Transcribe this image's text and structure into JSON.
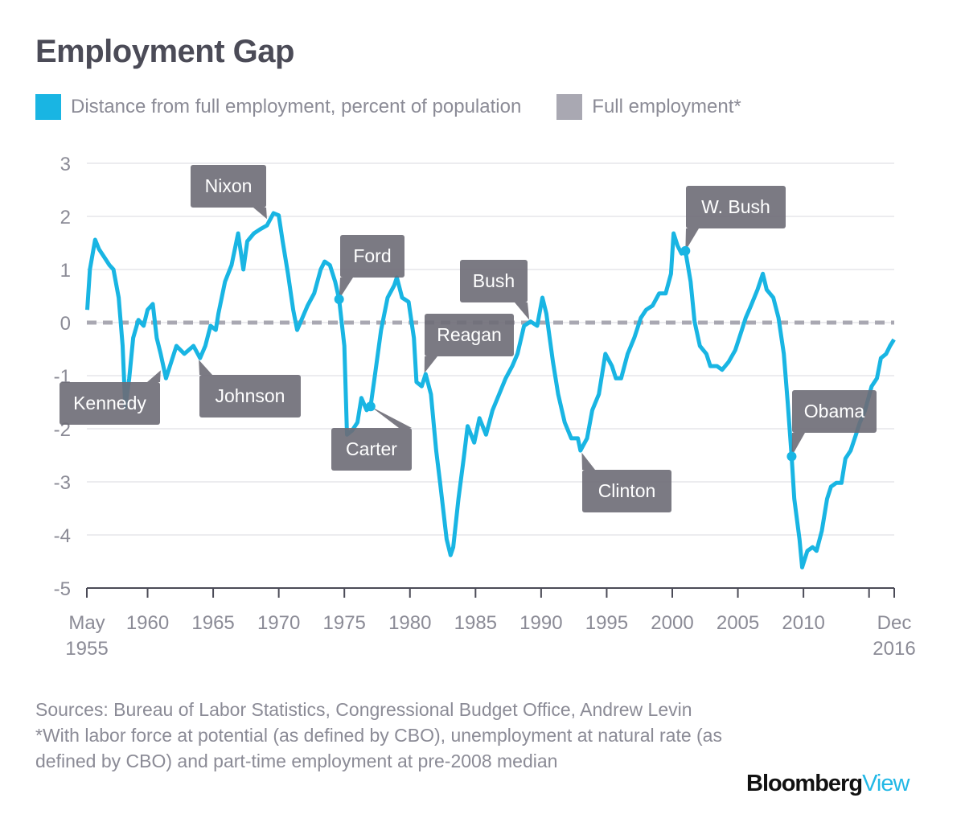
{
  "chart_data": {
    "type": "line",
    "title": "Employment Gap",
    "legend": [
      {
        "label": "Distance from full employment, percent of population",
        "color": "#19b5e3"
      },
      {
        "label": "Full employment*",
        "color": "#a9a8b2"
      }
    ],
    "legend_placement": "top-left",
    "ylim": [
      -5,
      3
    ],
    "yticks": [
      "3",
      "2",
      "1",
      "0",
      "-1",
      "-2",
      "-3",
      "-4",
      "-5"
    ],
    "xlim": [
      "May 1955",
      "Dec 2016"
    ],
    "xticks": [
      {
        "year": 1955.37,
        "label": [
          "May",
          "1955"
        ]
      },
      {
        "year": 1960,
        "label": [
          "1960"
        ]
      },
      {
        "year": 1965,
        "label": [
          "1965"
        ]
      },
      {
        "year": 1970,
        "label": [
          "1970"
        ]
      },
      {
        "year": 1975,
        "label": [
          "1975"
        ]
      },
      {
        "year": 1980,
        "label": [
          "1980"
        ]
      },
      {
        "year": 1985,
        "label": [
          "1985"
        ]
      },
      {
        "year": 1990,
        "label": [
          "1990"
        ]
      },
      {
        "year": 1995,
        "label": [
          "1995"
        ]
      },
      {
        "year": 2000,
        "label": [
          "2000"
        ]
      },
      {
        "year": 2005,
        "label": [
          "2005"
        ]
      },
      {
        "year": 2010,
        "label": [
          "2010"
        ]
      },
      {
        "year": 2015,
        "label": []
      },
      {
        "year": 2016.92,
        "label": [
          "Dec",
          "2016"
        ]
      }
    ],
    "grid": true,
    "reference_line": {
      "value": 0,
      "name": "Full employment*",
      "style": "dashed"
    },
    "series": [
      {
        "name": "Distance from full employment, percent of population",
        "points": [
          [
            1955.4,
            0.24
          ],
          [
            1955.6,
            1.0
          ],
          [
            1956.0,
            1.56
          ],
          [
            1956.3,
            1.38
          ],
          [
            1956.7,
            1.23
          ],
          [
            1957.1,
            1.08
          ],
          [
            1957.4,
            1.0
          ],
          [
            1957.8,
            0.47
          ],
          [
            1958.1,
            -0.44
          ],
          [
            1958.3,
            -1.6
          ],
          [
            1958.6,
            -1.05
          ],
          [
            1958.9,
            -0.29
          ],
          [
            1959.3,
            0.05
          ],
          [
            1959.7,
            -0.06
          ],
          [
            1960.0,
            0.24
          ],
          [
            1960.4,
            0.35
          ],
          [
            1960.7,
            -0.29
          ],
          [
            1961.0,
            -0.59
          ],
          [
            1961.4,
            -1.05
          ],
          [
            1961.7,
            -0.82
          ],
          [
            1962.2,
            -0.44
          ],
          [
            1962.8,
            -0.59
          ],
          [
            1963.5,
            -0.44
          ],
          [
            1964.0,
            -0.67
          ],
          [
            1964.4,
            -0.44
          ],
          [
            1964.8,
            -0.06
          ],
          [
            1965.2,
            -0.14
          ],
          [
            1965.4,
            0.17
          ],
          [
            1965.9,
            0.77
          ],
          [
            1966.4,
            1.08
          ],
          [
            1966.9,
            1.68
          ],
          [
            1967.3,
            1.0
          ],
          [
            1967.6,
            1.53
          ],
          [
            1968.1,
            1.68
          ],
          [
            1968.6,
            1.76
          ],
          [
            1969.1,
            1.83
          ],
          [
            1969.6,
            2.06
          ],
          [
            1970.0,
            2.02
          ],
          [
            1970.3,
            1.53
          ],
          [
            1970.7,
            0.92
          ],
          [
            1971.1,
            0.24
          ],
          [
            1971.4,
            -0.14
          ],
          [
            1971.8,
            0.09
          ],
          [
            1972.2,
            0.32
          ],
          [
            1972.7,
            0.55
          ],
          [
            1973.2,
            1.0
          ],
          [
            1973.5,
            1.15
          ],
          [
            1973.9,
            1.08
          ],
          [
            1974.3,
            0.77
          ],
          [
            1974.6,
            0.44
          ],
          [
            1975.0,
            -0.44
          ],
          [
            1975.2,
            -2.11
          ],
          [
            1975.6,
            -2.03
          ],
          [
            1976.0,
            -1.88
          ],
          [
            1976.3,
            -1.42
          ],
          [
            1976.7,
            -1.65
          ],
          [
            1977.0,
            -1.58
          ],
          [
            1977.3,
            -1.05
          ],
          [
            1977.8,
            -0.14
          ],
          [
            1978.3,
            0.47
          ],
          [
            1978.8,
            0.7
          ],
          [
            1979.0,
            0.85
          ],
          [
            1979.4,
            0.47
          ],
          [
            1979.9,
            0.39
          ],
          [
            1980.3,
            -0.29
          ],
          [
            1980.5,
            -1.12
          ],
          [
            1980.9,
            -1.2
          ],
          [
            1981.2,
            -0.97
          ],
          [
            1981.6,
            -1.35
          ],
          [
            1982.0,
            -2.41
          ],
          [
            1982.3,
            -3.02
          ],
          [
            1982.8,
            -4.08
          ],
          [
            1983.1,
            -4.38
          ],
          [
            1983.3,
            -4.23
          ],
          [
            1983.7,
            -3.32
          ],
          [
            1984.1,
            -2.56
          ],
          [
            1984.4,
            -1.95
          ],
          [
            1984.9,
            -2.26
          ],
          [
            1985.3,
            -1.8
          ],
          [
            1985.8,
            -2.11
          ],
          [
            1986.3,
            -1.65
          ],
          [
            1986.8,
            -1.35
          ],
          [
            1987.3,
            -1.05
          ],
          [
            1987.8,
            -0.82
          ],
          [
            1988.2,
            -0.59
          ],
          [
            1988.7,
            -0.06
          ],
          [
            1989.2,
            0.02
          ],
          [
            1989.7,
            -0.06
          ],
          [
            1990.1,
            0.47
          ],
          [
            1990.4,
            0.17
          ],
          [
            1990.9,
            -0.74
          ],
          [
            1991.3,
            -1.35
          ],
          [
            1991.8,
            -1.88
          ],
          [
            1992.3,
            -2.18
          ],
          [
            1992.8,
            -2.18
          ],
          [
            1993.0,
            -2.41
          ],
          [
            1993.5,
            -2.18
          ],
          [
            1993.9,
            -1.65
          ],
          [
            1994.4,
            -1.35
          ],
          [
            1994.9,
            -0.59
          ],
          [
            1995.4,
            -0.82
          ],
          [
            1995.7,
            -1.05
          ],
          [
            1996.1,
            -1.05
          ],
          [
            1996.6,
            -0.59
          ],
          [
            1997.1,
            -0.29
          ],
          [
            1997.6,
            0.09
          ],
          [
            1998.0,
            0.24
          ],
          [
            1998.5,
            0.32
          ],
          [
            1999.0,
            0.55
          ],
          [
            1999.5,
            0.55
          ],
          [
            1999.9,
            0.92
          ],
          [
            2000.1,
            1.68
          ],
          [
            2000.4,
            1.45
          ],
          [
            2000.7,
            1.3
          ],
          [
            2001.0,
            1.35
          ],
          [
            2001.4,
            0.77
          ],
          [
            2001.7,
            0.02
          ],
          [
            2002.1,
            -0.44
          ],
          [
            2002.6,
            -0.59
          ],
          [
            2002.9,
            -0.82
          ],
          [
            2003.4,
            -0.82
          ],
          [
            2003.8,
            -0.89
          ],
          [
            2004.3,
            -0.74
          ],
          [
            2004.8,
            -0.52
          ],
          [
            2005.3,
            -0.14
          ],
          [
            2005.6,
            0.09
          ],
          [
            2006.0,
            0.32
          ],
          [
            2006.5,
            0.62
          ],
          [
            2006.9,
            0.92
          ],
          [
            2007.2,
            0.62
          ],
          [
            2007.7,
            0.47
          ],
          [
            2008.1,
            0.09
          ],
          [
            2008.5,
            -0.59
          ],
          [
            2008.8,
            -1.5
          ],
          [
            2009.1,
            -2.52
          ],
          [
            2009.3,
            -3.32
          ],
          [
            2009.7,
            -4.08
          ],
          [
            2009.9,
            -4.61
          ],
          [
            2010.3,
            -4.3
          ],
          [
            2010.7,
            -4.23
          ],
          [
            2011.0,
            -4.3
          ],
          [
            2011.4,
            -3.92
          ],
          [
            2011.8,
            -3.32
          ],
          [
            2012.1,
            -3.09
          ],
          [
            2012.5,
            -3.02
          ],
          [
            2012.9,
            -3.02
          ],
          [
            2013.2,
            -2.56
          ],
          [
            2013.6,
            -2.41
          ],
          [
            2014.0,
            -2.11
          ],
          [
            2014.3,
            -1.88
          ],
          [
            2014.7,
            -1.65
          ],
          [
            2015.2,
            -1.2
          ],
          [
            2015.6,
            -1.05
          ],
          [
            2015.9,
            -0.67
          ],
          [
            2016.3,
            -0.59
          ],
          [
            2016.6,
            -0.44
          ],
          [
            2016.9,
            -0.32
          ]
        ]
      }
    ],
    "annotations": [
      {
        "label": "Kennedy",
        "year": 1961.0,
        "value": -0.9
      },
      {
        "label": "Johnson",
        "year": 1963.9,
        "value": -0.7
      },
      {
        "label": "Nixon",
        "year": 1969.1,
        "value": 1.95
      },
      {
        "label": "Ford",
        "year": 1974.6,
        "value": 0.44,
        "marker": true
      },
      {
        "label": "Carter",
        "year": 1977.0,
        "value": -1.58,
        "marker": true
      },
      {
        "label": "Reagan",
        "year": 1981.1,
        "value": -0.95
      },
      {
        "label": "Bush",
        "year": 1989.1,
        "value": 0.05
      },
      {
        "label": "Clinton",
        "year": 1993.1,
        "value": -2.45
      },
      {
        "label": "W. Bush",
        "year": 2001.0,
        "value": 1.35,
        "marker": true
      },
      {
        "label": "Obama",
        "year": 2009.1,
        "value": -2.52,
        "marker": true
      }
    ]
  },
  "footer": {
    "sources": "Sources: Bureau of Labor Statistics, Congressional Budget Office, Andrew Levin",
    "note": "*With labor force at potential (as defined by CBO), unemployment at natural rate (as defined by CBO) and part-time employment at pre-2008 median"
  },
  "logo": {
    "part1": "Bloomberg",
    "part2": "View"
  }
}
